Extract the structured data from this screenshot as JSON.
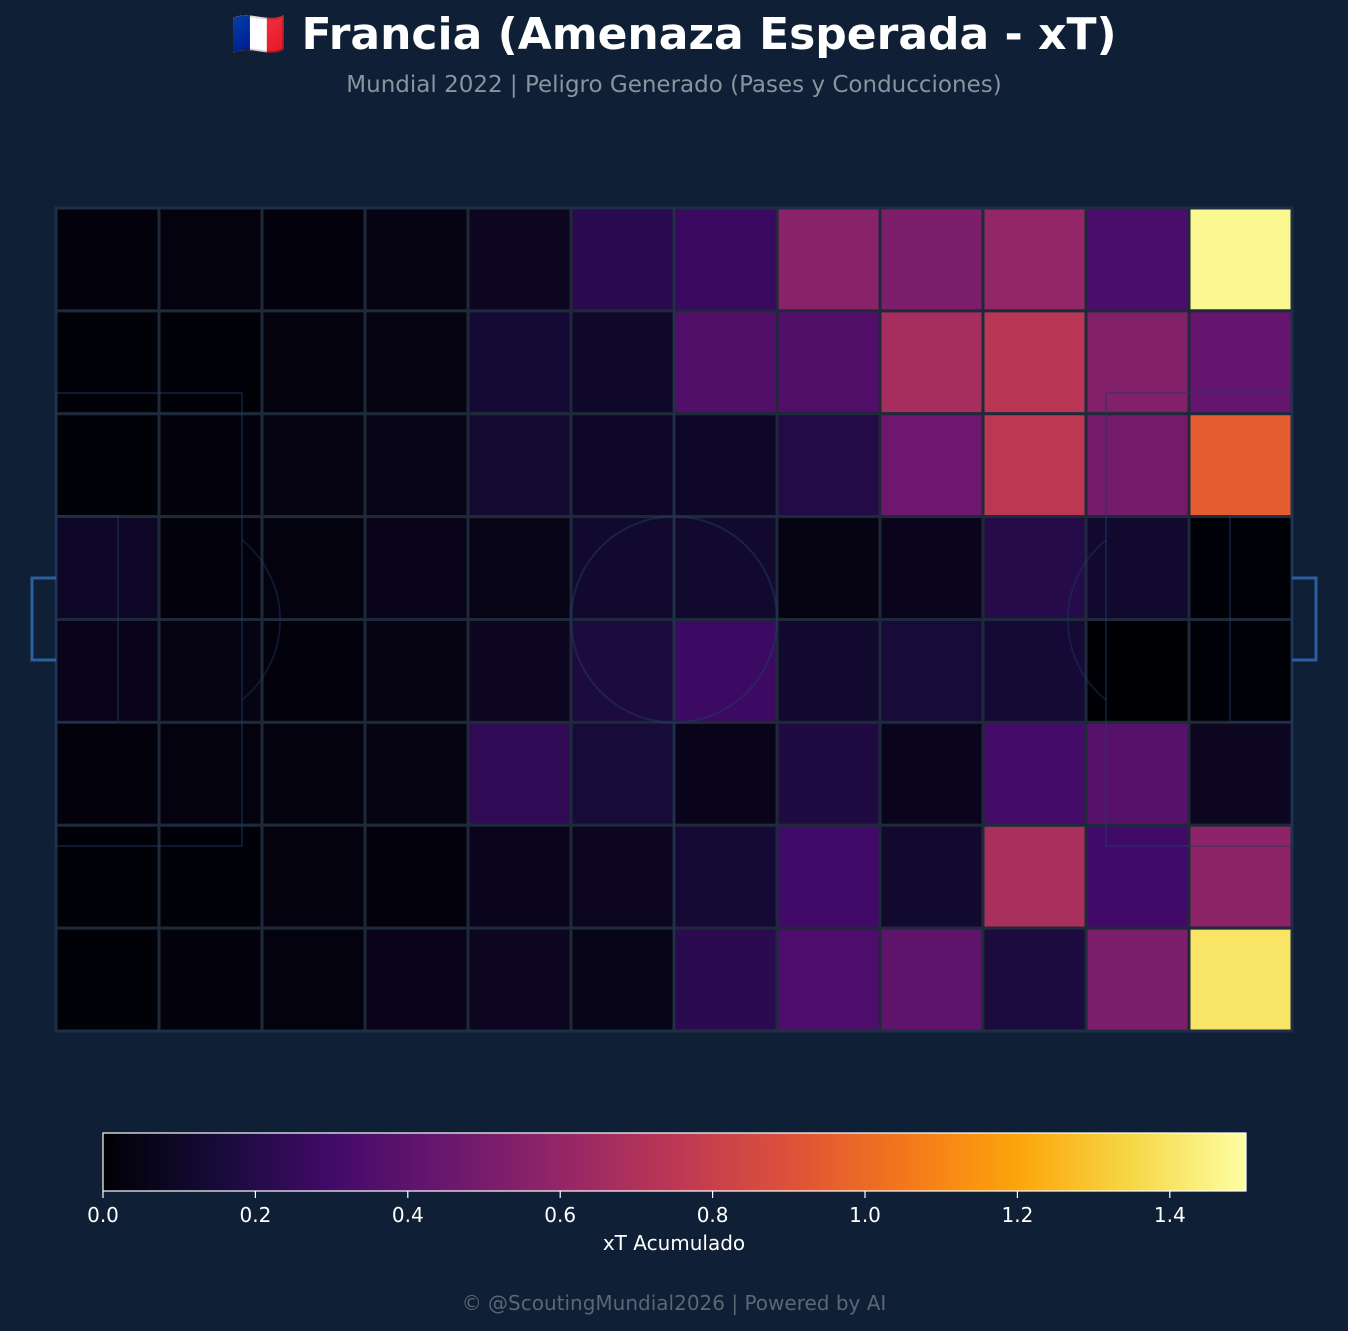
{
  "header": {
    "title": "🇫🇷 Francia (Amenaza Esperada - xT)",
    "subtitle": "Mundial 2022 | Peligro Generado (Pases y Conducciones)"
  },
  "footer": {
    "credit": "© @ScoutingMundial2026 | Powered by AI"
  },
  "colors": {
    "background": "#0f1f35",
    "grid_line": "#1e2a3a",
    "pitch_markings": "#1e3a66",
    "goal": "#2a5fa0"
  },
  "chart_data": {
    "type": "heatmap",
    "title": "🇫🇷 Francia (Amenaza Esperada - xT)",
    "subtitle": "Mundial 2022 | Peligro Generado (Pases y Conducciones)",
    "colormap": "inferno",
    "n_cols": 12,
    "n_rows": 8,
    "values": [
      [
        0.02,
        0.03,
        0.02,
        0.04,
        0.08,
        0.22,
        0.27,
        0.56,
        0.52,
        0.6,
        0.33,
        1.47
      ],
      [
        0.01,
        0.01,
        0.03,
        0.04,
        0.14,
        0.11,
        0.36,
        0.36,
        0.67,
        0.74,
        0.54,
        0.43
      ],
      [
        0.01,
        0.02,
        0.04,
        0.05,
        0.13,
        0.1,
        0.1,
        0.19,
        0.46,
        0.75,
        0.49,
        0.95
      ],
      [
        0.1,
        0.02,
        0.03,
        0.06,
        0.05,
        0.12,
        0.12,
        0.04,
        0.07,
        0.2,
        0.12,
        0.01
      ],
      [
        0.06,
        0.04,
        0.02,
        0.04,
        0.08,
        0.17,
        0.28,
        0.12,
        0.15,
        0.14,
        0.0,
        0.01
      ],
      [
        0.02,
        0.03,
        0.03,
        0.04,
        0.24,
        0.15,
        0.06,
        0.18,
        0.07,
        0.31,
        0.38,
        0.08
      ],
      [
        0.01,
        0.01,
        0.03,
        0.02,
        0.07,
        0.08,
        0.14,
        0.3,
        0.12,
        0.68,
        0.3,
        0.58
      ],
      [
        0.01,
        0.02,
        0.03,
        0.06,
        0.08,
        0.05,
        0.22,
        0.34,
        0.41,
        0.17,
        0.52,
        1.4
      ]
    ],
    "colorbar": {
      "label": "xT Acumulado",
      "min": 0.0,
      "max": 1.5,
      "ticks": [
        "0.0",
        "0.2",
        "0.4",
        "0.6",
        "0.8",
        "1.0",
        "1.2",
        "1.4"
      ]
    },
    "grid": true
  }
}
